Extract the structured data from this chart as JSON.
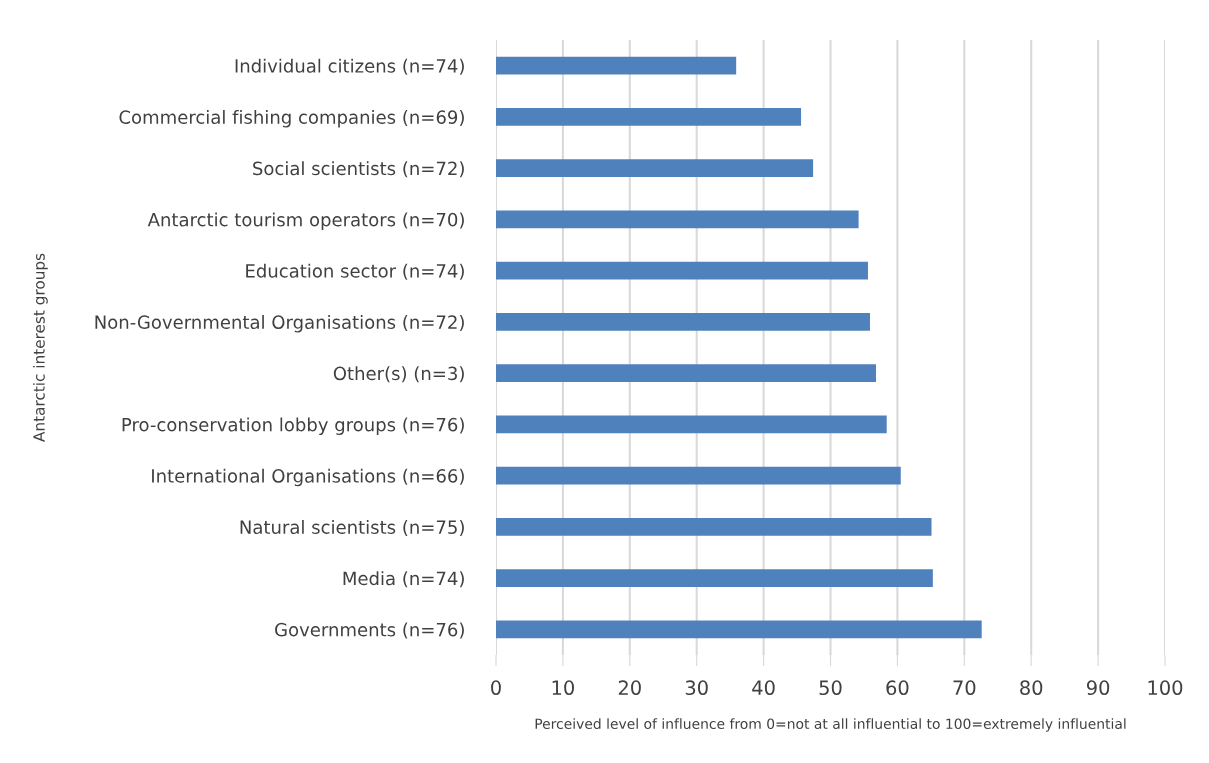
{
  "chart_data": {
    "type": "bar",
    "orientation": "horizontal",
    "categories": [
      "Individual citizens (n=74)",
      "Commercial fishing companies (n=69)",
      "Social scientists (n=72)",
      "Antarctic tourism operators (n=70)",
      "Education sector (n=74)",
      "Non-Governmental Organisations (n=72)",
      "Other(s) (n=3)",
      "Pro-conservation lobby groups (n=76)",
      "International Organisations (n=66)",
      "Natural scientists (n=75)",
      "Media (n=74)",
      "Governments (n=76)"
    ],
    "values": [
      35.9,
      45.6,
      47.4,
      54.2,
      55.6,
      55.9,
      56.8,
      58.4,
      60.5,
      65.1,
      65.3,
      72.6
    ],
    "color": "#4f81bd",
    "xlim": [
      0,
      100
    ],
    "xticks": [
      0,
      10,
      20,
      30,
      40,
      50,
      60,
      70,
      80,
      90,
      100
    ],
    "xlabel": "Perceived level of influence from 0=not at all influential to 100=extremely influential",
    "ylabel": "Antarctic interest groups",
    "grid": "x"
  }
}
